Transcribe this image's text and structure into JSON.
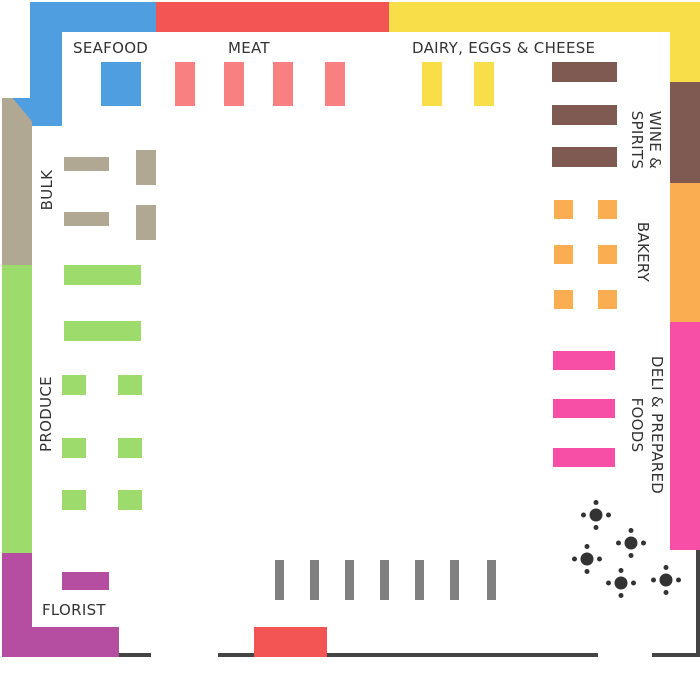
{
  "map": {
    "departments": {
      "seafood": "SEAFOOD",
      "meat": "MEAT",
      "dairy": "DAIRY, EGGS & CHEESE",
      "wine": "WINE & SPIRITS",
      "bakery": "BAKERY",
      "deli": "DELI & PREPARED FOODS",
      "produce": "PRODUCE",
      "bulk": "BULK",
      "florist": "FLORIST"
    },
    "colors": {
      "seafood": "#4f9fe0",
      "meat": "#f25553",
      "meat_shelf": "#f98080",
      "dairy": "#f8df4a",
      "wine": "#7e5a52",
      "bakery": "#fbad52",
      "deli": "#f74fa6",
      "produce": "#9ddb6c",
      "bulk": "#b0a893",
      "florist": "#b54ea1",
      "checkout": "#808080",
      "seating": "#333333",
      "walls": "#444444"
    },
    "icons": [
      "register-icon",
      "table-seating-icon"
    ]
  }
}
